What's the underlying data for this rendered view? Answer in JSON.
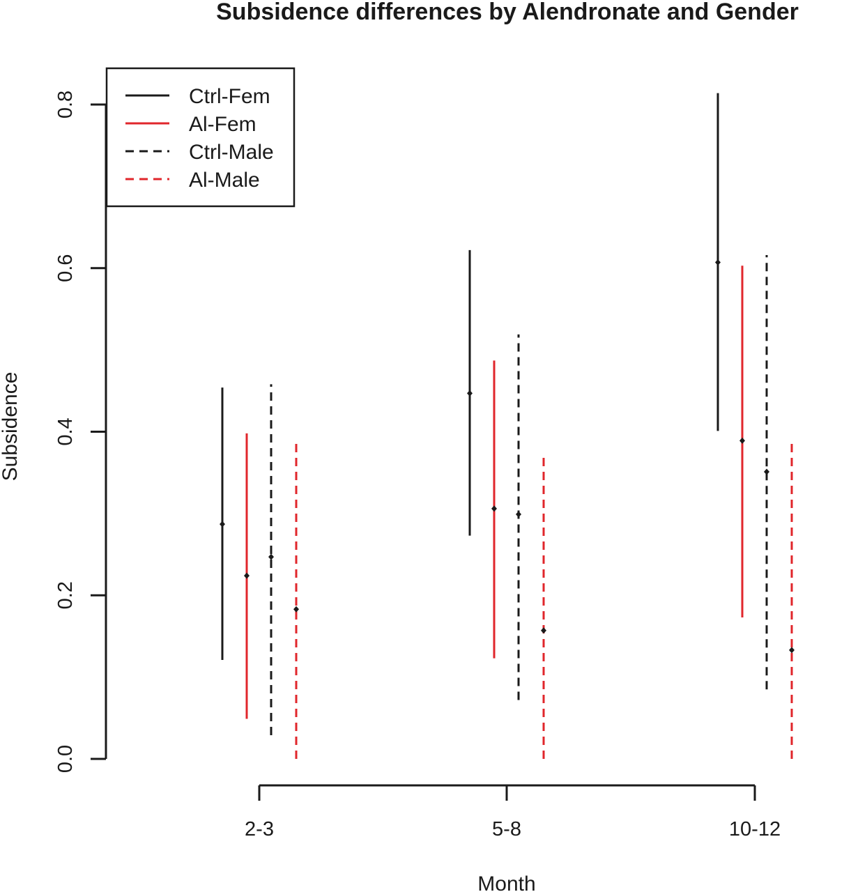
{
  "colors": {
    "black": "#1a1a1a",
    "red": "#e0262b"
  },
  "chart_data": {
    "type": "errorbar",
    "title": "Subsidence differences by Alendronate and Gender",
    "xlabel": "Month",
    "ylabel": "Subsidence",
    "categories": [
      "2-3",
      "5-8",
      "10-12"
    ],
    "yticks": [
      "0.0",
      "0.2",
      "0.4",
      "0.6",
      "0.8"
    ],
    "ylim": [
      0,
      0.8
    ],
    "legend_position": "top-left",
    "series": [
      {
        "name": "Ctrl-Fem",
        "color": "#1a1a1a",
        "dashed": false,
        "estimate": [
          0.287,
          0.447,
          0.607
        ],
        "lower": [
          0.121,
          0.273,
          0.401
        ],
        "upper": [
          0.454,
          0.622,
          0.814
        ]
      },
      {
        "name": "Al-Fem",
        "color": "#e0262b",
        "dashed": false,
        "estimate": [
          0.224,
          0.306,
          0.389
        ],
        "lower": [
          0.049,
          0.123,
          0.173
        ],
        "upper": [
          0.398,
          0.487,
          0.603
        ]
      },
      {
        "name": "Ctrl-Male",
        "color": "#1a1a1a",
        "dashed": true,
        "estimate": [
          0.247,
          0.299,
          0.351
        ],
        "lower": [
          0.029,
          0.072,
          0.085
        ],
        "upper": [
          0.458,
          0.519,
          0.616
        ]
      },
      {
        "name": "Al-Male",
        "color": "#e0262b",
        "dashed": true,
        "estimate": [
          0.183,
          0.157,
          0.133
        ],
        "lower": [
          0.0,
          0.0,
          0.0
        ],
        "upper": [
          0.389,
          0.369,
          0.386
        ]
      }
    ]
  }
}
